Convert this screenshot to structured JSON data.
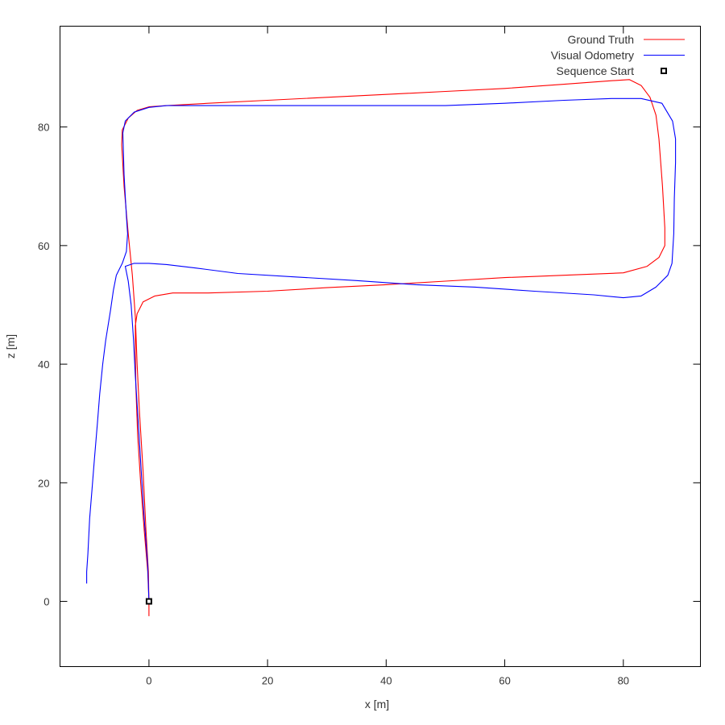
{
  "chart_data": {
    "type": "line",
    "title": "",
    "xlabel": "x [m]",
    "ylabel": "z [m]",
    "xlim": [
      -15,
      93
    ],
    "ylim": [
      -11,
      97
    ],
    "xticks": [
      0,
      20,
      40,
      60,
      80
    ],
    "yticks": [
      0,
      20,
      40,
      60,
      80
    ],
    "grid": false,
    "legend_position": "top-right",
    "series": [
      {
        "name": "Ground Truth",
        "color": "#ff0000",
        "points": [
          [
            0.0,
            -2.5
          ],
          [
            0.0,
            0.0
          ],
          [
            -0.2,
            5.0
          ],
          [
            -0.8,
            12.0
          ],
          [
            -1.4,
            20.0
          ],
          [
            -1.9,
            28.0
          ],
          [
            -2.2,
            36.0
          ],
          [
            -2.3,
            42.0
          ],
          [
            -2.3,
            46.5
          ],
          [
            -2.0,
            48.5
          ],
          [
            -1.0,
            50.5
          ],
          [
            1.0,
            51.5
          ],
          [
            4.0,
            52.0
          ],
          [
            10.0,
            52.0
          ],
          [
            20.0,
            52.3
          ],
          [
            30.0,
            52.9
          ],
          [
            40.0,
            53.4
          ],
          [
            50.0,
            54.0
          ],
          [
            60.0,
            54.6
          ],
          [
            70.0,
            55.0
          ],
          [
            80.0,
            55.4
          ],
          [
            84.0,
            56.5
          ],
          [
            86.0,
            58.0
          ],
          [
            87.0,
            60.0
          ],
          [
            87.0,
            63.0
          ],
          [
            86.6,
            70.0
          ],
          [
            86.0,
            78.0
          ],
          [
            85.5,
            82.0
          ],
          [
            84.5,
            85.0
          ],
          [
            83.0,
            87.0
          ],
          [
            81.0,
            88.0
          ],
          [
            78.0,
            87.8
          ],
          [
            70.0,
            87.2
          ],
          [
            60.0,
            86.5
          ],
          [
            50.0,
            86.0
          ],
          [
            40.0,
            85.5
          ],
          [
            30.0,
            85.0
          ],
          [
            20.0,
            84.5
          ],
          [
            10.0,
            84.0
          ],
          [
            3.0,
            83.6
          ],
          [
            0.0,
            83.4
          ],
          [
            -2.0,
            82.8
          ],
          [
            -3.5,
            81.5
          ],
          [
            -4.5,
            79.5
          ],
          [
            -4.6,
            77.0
          ],
          [
            -4.2,
            70.0
          ],
          [
            -3.5,
            62.0
          ],
          [
            -2.8,
            55.0
          ],
          [
            -2.3,
            48.0
          ],
          [
            -2.0,
            40.0
          ],
          [
            -1.6,
            32.0
          ],
          [
            -1.0,
            22.0
          ],
          [
            -0.5,
            12.0
          ],
          [
            -0.1,
            5.0
          ],
          [
            0.0,
            0.0
          ]
        ]
      },
      {
        "name": "Visual Odometry",
        "color": "#0000ff",
        "points": [
          [
            0.0,
            0.0
          ],
          [
            -0.2,
            6.0
          ],
          [
            -0.8,
            14.0
          ],
          [
            -1.3,
            22.0
          ],
          [
            -1.8,
            30.0
          ],
          [
            -2.3,
            38.0
          ],
          [
            -2.6,
            44.0
          ],
          [
            -3.0,
            50.0
          ],
          [
            -3.5,
            54.0
          ],
          [
            -4.0,
            56.5
          ],
          [
            -2.5,
            57.0
          ],
          [
            0.0,
            57.0
          ],
          [
            3.0,
            56.8
          ],
          [
            8.0,
            56.2
          ],
          [
            15.0,
            55.3
          ],
          [
            25.0,
            54.7
          ],
          [
            35.0,
            54.1
          ],
          [
            45.0,
            53.4
          ],
          [
            55.0,
            53.0
          ],
          [
            65.0,
            52.3
          ],
          [
            75.0,
            51.7
          ],
          [
            80.0,
            51.2
          ],
          [
            83.0,
            51.5
          ],
          [
            85.5,
            53.0
          ],
          [
            87.5,
            55.0
          ],
          [
            88.2,
            57.0
          ],
          [
            88.5,
            62.0
          ],
          [
            88.6,
            68.0
          ],
          [
            88.8,
            74.0
          ],
          [
            88.8,
            78.0
          ],
          [
            88.3,
            81.0
          ],
          [
            86.5,
            84.0
          ],
          [
            83.0,
            84.8
          ],
          [
            78.0,
            84.8
          ],
          [
            70.0,
            84.5
          ],
          [
            60.0,
            84.0
          ],
          [
            50.0,
            83.6
          ],
          [
            40.0,
            83.6
          ],
          [
            30.0,
            83.6
          ],
          [
            20.0,
            83.6
          ],
          [
            10.0,
            83.6
          ],
          [
            3.0,
            83.6
          ],
          [
            0.0,
            83.3
          ],
          [
            -2.5,
            82.5
          ],
          [
            -4.0,
            81.0
          ],
          [
            -4.4,
            79.0
          ],
          [
            -4.2,
            72.0
          ],
          [
            -3.8,
            65.0
          ],
          [
            -3.6,
            62.0
          ],
          [
            -3.8,
            59.0
          ],
          [
            -4.5,
            57.0
          ],
          [
            -5.0,
            56.0
          ],
          [
            -5.5,
            55.0
          ],
          [
            -6.0,
            52.5
          ],
          [
            -6.5,
            49.0
          ],
          [
            -7.3,
            44.0
          ],
          [
            -7.8,
            40.0
          ],
          [
            -8.3,
            35.0
          ],
          [
            -8.7,
            30.0
          ],
          [
            -9.2,
            24.0
          ],
          [
            -9.6,
            19.0
          ],
          [
            -10.0,
            14.0
          ],
          [
            -10.3,
            8.0
          ],
          [
            -10.5,
            5.0
          ],
          [
            -10.5,
            3.0
          ]
        ]
      }
    ],
    "markers": [
      {
        "name": "Sequence Start",
        "color": "#000000",
        "shape": "square",
        "x": 0.0,
        "y": 0.0
      }
    ]
  }
}
